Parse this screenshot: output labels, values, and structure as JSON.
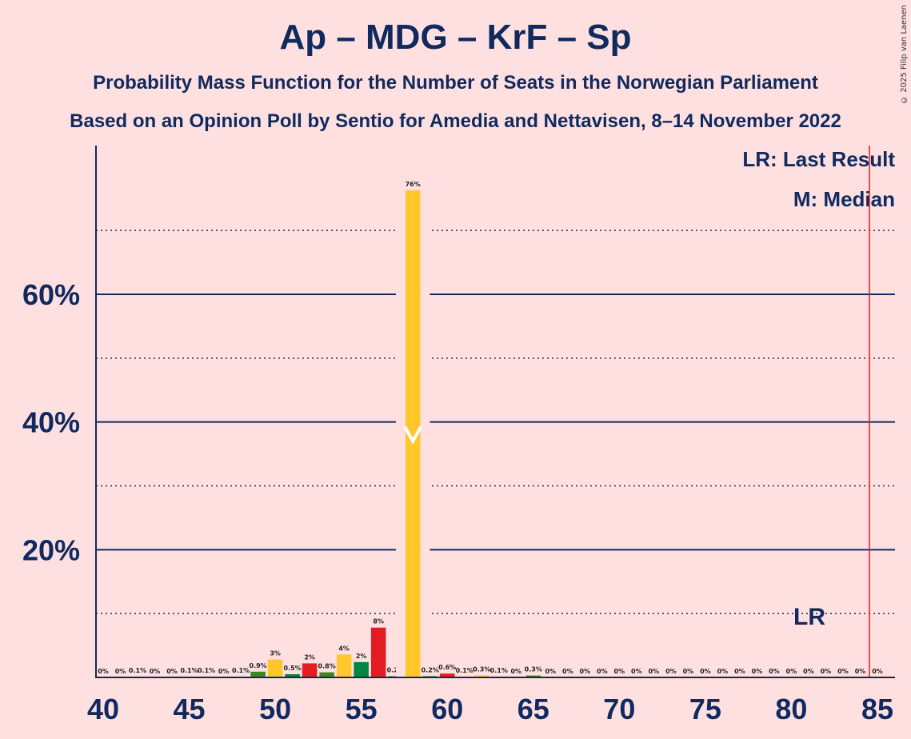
{
  "title": "Ap – MDG – KrF – Sp",
  "subtitle_1": "Probability Mass Function for the Number of Seats in the Norwegian Parliament",
  "subtitle_2": "Based on an Opinion Poll by Sentio for Amedia and Nettavisen, 8–14 November 2022",
  "copyright": "© 2025 Filip van Laenen",
  "legend": {
    "last_result": "LR: Last Result",
    "median": "M: Median"
  },
  "colors": {
    "background": "#FFE0E0",
    "axis": "#0F2A5E",
    "last_result_line": "#E0201E",
    "Ap": "#E31B23",
    "MDG": "#438220",
    "KrF": "#FFC72C",
    "Sp": "#008542"
  },
  "chart_data": {
    "type": "bar",
    "title": "Ap – MDG – KrF – Sp",
    "xlabel": "",
    "ylabel": "",
    "xlim": [
      40,
      85
    ],
    "ylim": [
      0,
      83
    ],
    "x_ticks": [
      "40",
      "45",
      "50",
      "55",
      "60",
      "65",
      "70",
      "75",
      "80",
      "85"
    ],
    "y_ticks": [
      {
        "value": 20,
        "label": "20%"
      },
      {
        "value": 40,
        "label": "40%"
      },
      {
        "value": 60,
        "label": "60%"
      }
    ],
    "minor_gridlines": [
      10,
      30,
      50,
      70
    ],
    "median": 58,
    "median_label": "M",
    "last_result": 85,
    "last_result_label": "LR",
    "bars": [
      {
        "x": 40,
        "value": 0,
        "label": "0%",
        "color": "#E31B23"
      },
      {
        "x": 41,
        "value": 0,
        "label": "0%",
        "color": "#438220"
      },
      {
        "x": 42,
        "value": 0.1,
        "label": "0.1%",
        "color": "#FFC72C"
      },
      {
        "x": 43,
        "value": 0,
        "label": "0%",
        "color": "#008542"
      },
      {
        "x": 44,
        "value": 0,
        "label": "0%",
        "color": "#E31B23"
      },
      {
        "x": 45,
        "value": 0.1,
        "label": "0.1%",
        "color": "#438220"
      },
      {
        "x": 46,
        "value": 0.1,
        "label": "0.1%",
        "color": "#FFC72C"
      },
      {
        "x": 47,
        "value": 0,
        "label": "0%",
        "color": "#008542"
      },
      {
        "x": 48,
        "value": 0.1,
        "label": "0.1%",
        "color": "#E31B23"
      },
      {
        "x": 49,
        "value": 0.9,
        "label": "0.9%",
        "color": "#438220"
      },
      {
        "x": 50,
        "value": 2.8,
        "label": "3%",
        "color": "#FFC72C"
      },
      {
        "x": 51,
        "value": 0.5,
        "label": "0.5%",
        "color": "#008542"
      },
      {
        "x": 52,
        "value": 2.2,
        "label": "2%",
        "color": "#E31B23"
      },
      {
        "x": 53,
        "value": 0.8,
        "label": "0.8%",
        "color": "#438220"
      },
      {
        "x": 54,
        "value": 3.6,
        "label": "4%",
        "color": "#FFC72C"
      },
      {
        "x": 55,
        "value": 2.4,
        "label": "2%",
        "color": "#008542"
      },
      {
        "x": 56,
        "value": 7.8,
        "label": "8%",
        "color": "#E31B23"
      },
      {
        "x": 57,
        "value": 0.2,
        "label": "0.2%",
        "color": "#438220"
      },
      {
        "x": 58,
        "value": 76.3,
        "label": "76%",
        "color": "#FFC72C"
      },
      {
        "x": 59,
        "value": 0.2,
        "label": "0.2%",
        "color": "#008542"
      },
      {
        "x": 60,
        "value": 0.6,
        "label": "0.6%",
        "color": "#E31B23"
      },
      {
        "x": 61,
        "value": 0.1,
        "label": "0.1%",
        "color": "#438220"
      },
      {
        "x": 62,
        "value": 0.3,
        "label": "0.3%",
        "color": "#FFC72C"
      },
      {
        "x": 63,
        "value": 0.1,
        "label": "0.1%",
        "color": "#008542"
      },
      {
        "x": 64,
        "value": 0,
        "label": "0%",
        "color": "#E31B23"
      },
      {
        "x": 65,
        "value": 0.3,
        "label": "0.3%",
        "color": "#438220"
      },
      {
        "x": 66,
        "value": 0,
        "label": "0%",
        "color": "#FFC72C"
      },
      {
        "x": 67,
        "value": 0,
        "label": "0%",
        "color": "#008542"
      },
      {
        "x": 68,
        "value": 0,
        "label": "0%",
        "color": "#E31B23"
      },
      {
        "x": 69,
        "value": 0,
        "label": "0%",
        "color": "#438220"
      },
      {
        "x": 70,
        "value": 0,
        "label": "0%",
        "color": "#FFC72C"
      },
      {
        "x": 71,
        "value": 0,
        "label": "0%",
        "color": "#008542"
      },
      {
        "x": 72,
        "value": 0,
        "label": "0%",
        "color": "#E31B23"
      },
      {
        "x": 73,
        "value": 0,
        "label": "0%",
        "color": "#438220"
      },
      {
        "x": 74,
        "value": 0,
        "label": "0%",
        "color": "#FFC72C"
      },
      {
        "x": 75,
        "value": 0,
        "label": "0%",
        "color": "#008542"
      },
      {
        "x": 76,
        "value": 0,
        "label": "0%",
        "color": "#E31B23"
      },
      {
        "x": 77,
        "value": 0,
        "label": "0%",
        "color": "#438220"
      },
      {
        "x": 78,
        "value": 0,
        "label": "0%",
        "color": "#FFC72C"
      },
      {
        "x": 79,
        "value": 0,
        "label": "0%",
        "color": "#008542"
      },
      {
        "x": 80,
        "value": 0,
        "label": "0%",
        "color": "#E31B23"
      },
      {
        "x": 81,
        "value": 0,
        "label": "0%",
        "color": "#438220"
      },
      {
        "x": 82,
        "value": 0,
        "label": "0%",
        "color": "#FFC72C"
      },
      {
        "x": 83,
        "value": 0,
        "label": "0%",
        "color": "#008542"
      },
      {
        "x": 84,
        "value": 0,
        "label": "0%",
        "color": "#E31B23"
      },
      {
        "x": 85,
        "value": 0,
        "label": "0%",
        "color": "#438220"
      }
    ]
  }
}
